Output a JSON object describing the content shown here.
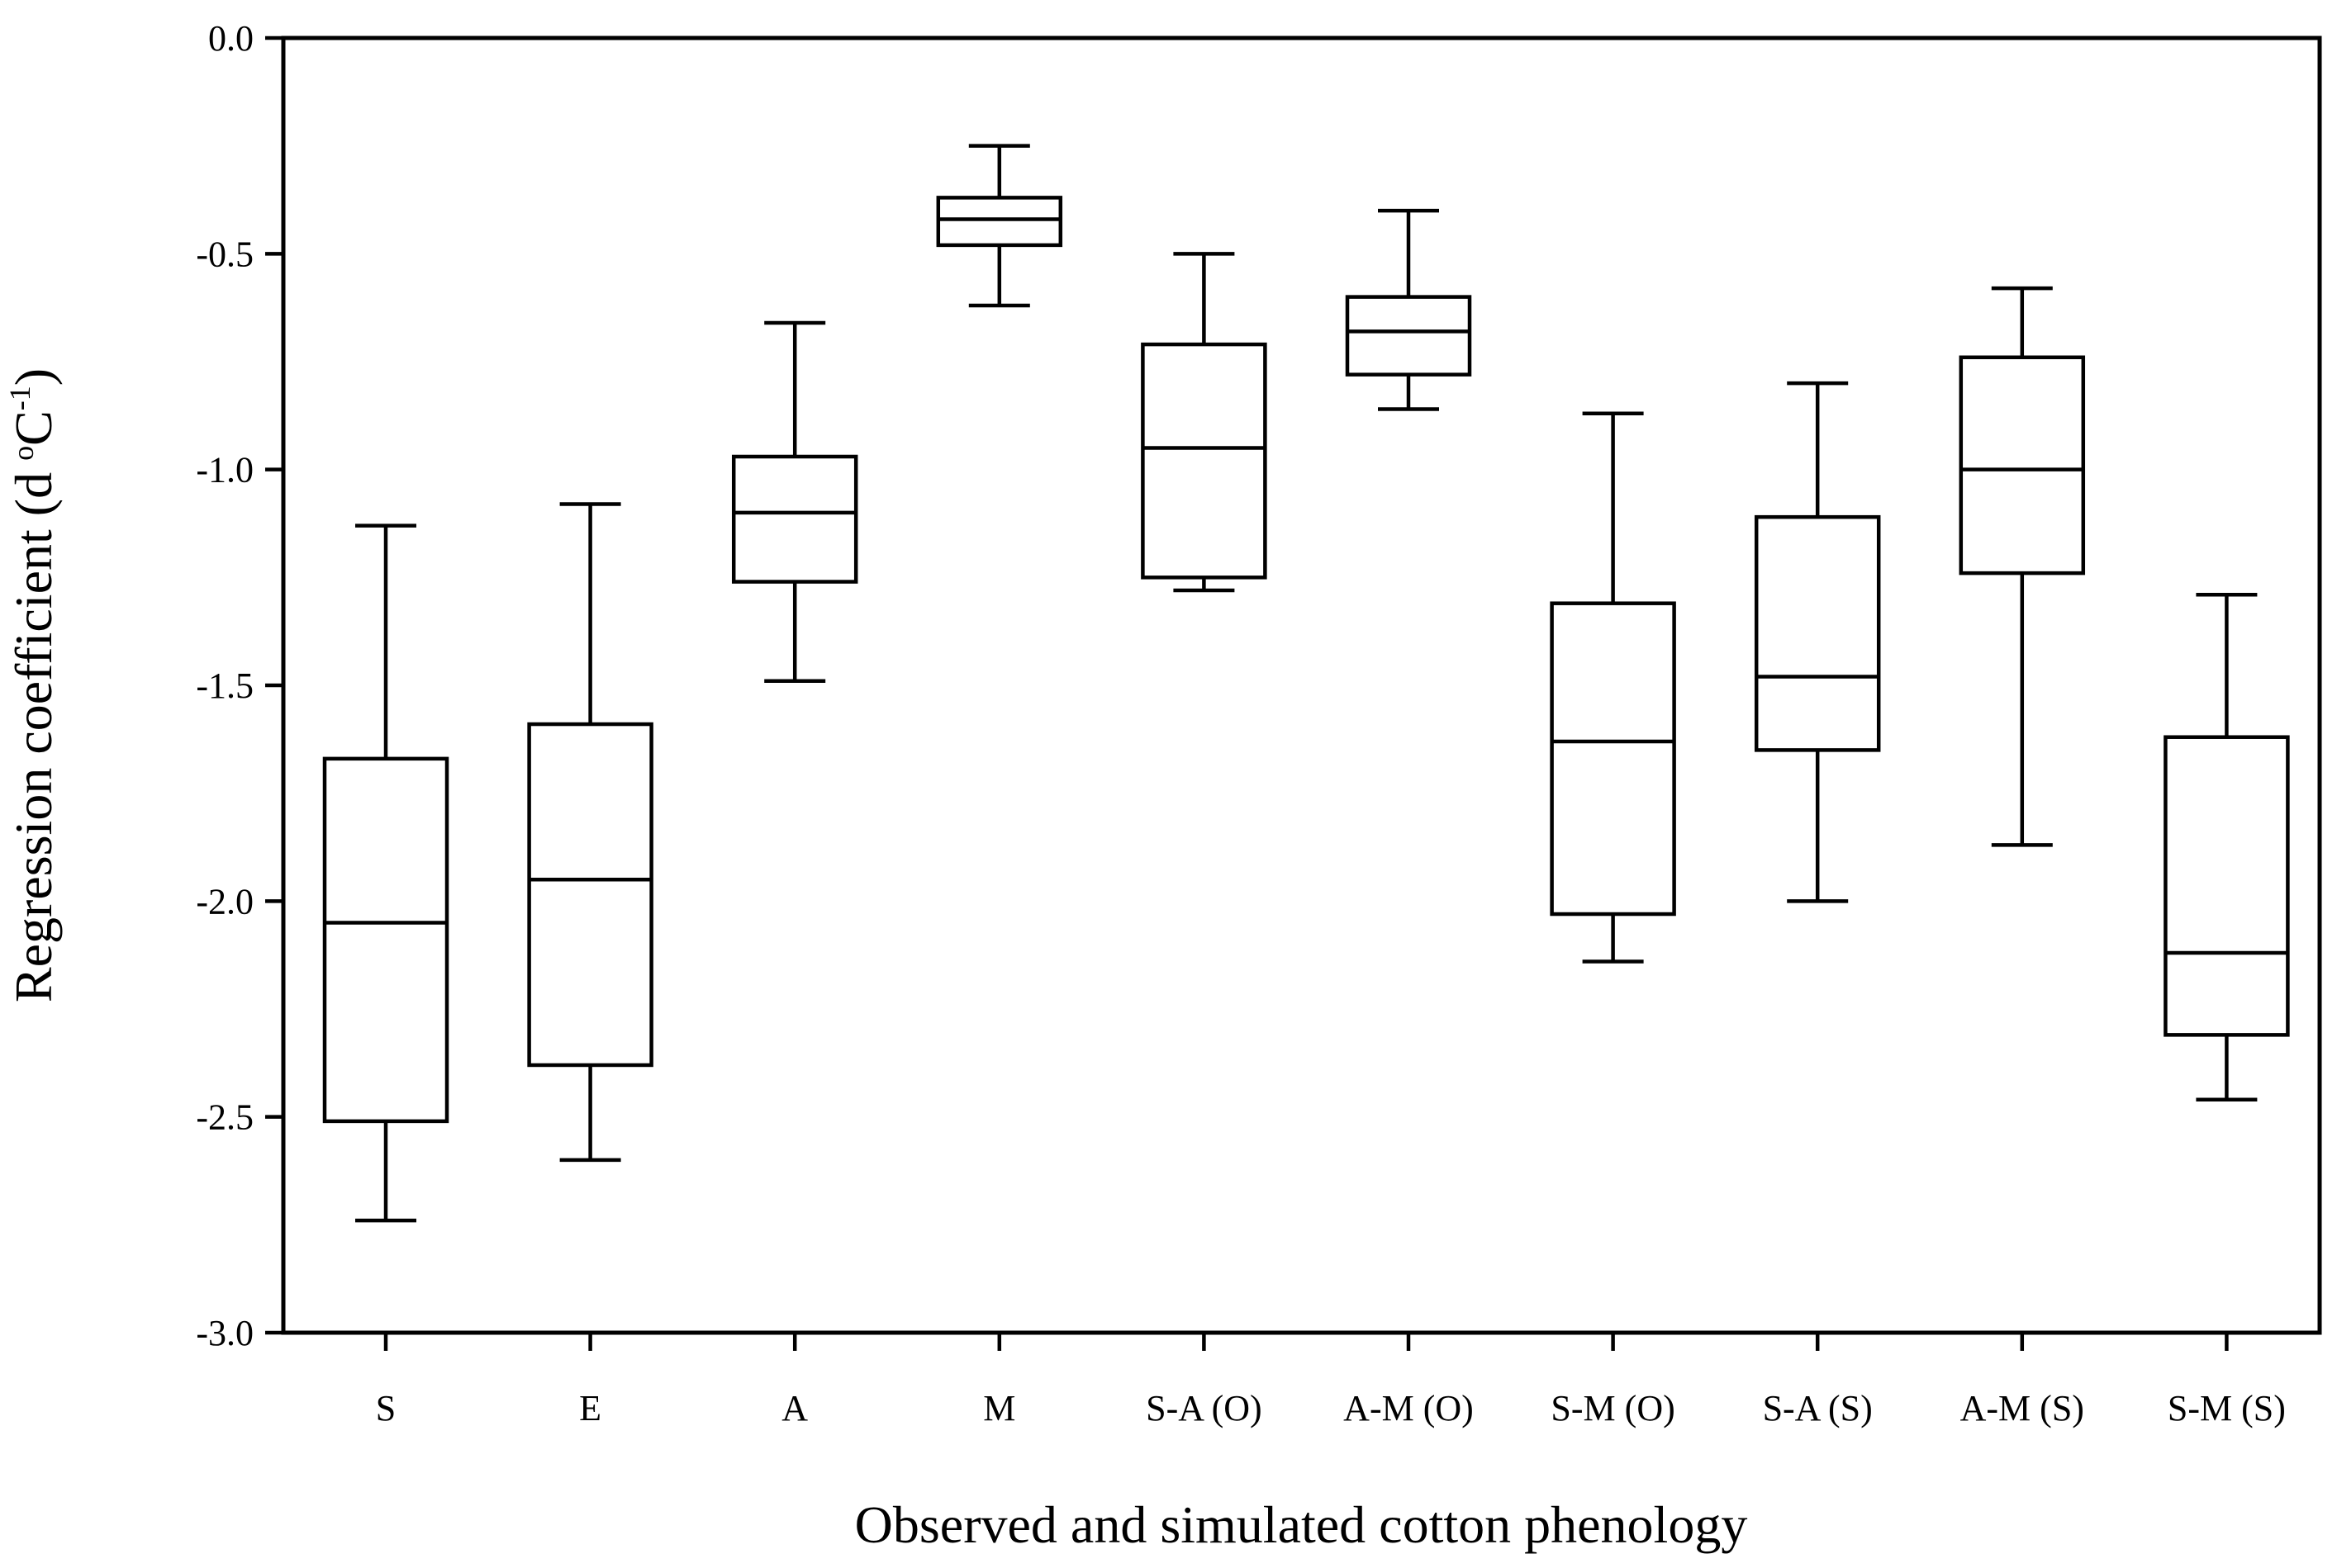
{
  "chart_data": {
    "type": "boxplot",
    "title": "",
    "xlabel": "Observed and simulated cotton phenology",
    "ylabel": {
      "prefix": "Regression coefficient (d",
      "unit": "C",
      "exponent": "-1",
      "suffix": ")",
      "degree": "o"
    },
    "ylim": [
      -3.0,
      0.0
    ],
    "yticks": [
      0.0,
      -0.5,
      -1.0,
      -1.5,
      -2.0,
      -2.5,
      -3.0
    ],
    "ytick_labels": [
      "0.0",
      "-0.5",
      "-1.0",
      "-1.5",
      "-2.0",
      "-2.5",
      "-3.0"
    ],
    "categories": [
      "S",
      "E",
      "A",
      "M",
      "S-A (O)",
      "A-M (O)",
      "S-M (O)",
      "S-A (S)",
      "A-M (S)",
      "S-M (S)"
    ],
    "boxes": [
      {
        "category": "S",
        "whisker_high": -1.13,
        "q3": -1.67,
        "median": -2.05,
        "q1": -2.51,
        "whisker_low": -2.74
      },
      {
        "category": "E",
        "whisker_high": -1.08,
        "q3": -1.59,
        "median": -1.95,
        "q1": -2.38,
        "whisker_low": -2.6
      },
      {
        "category": "A",
        "whisker_high": -0.66,
        "q3": -0.97,
        "median": -1.1,
        "q1": -1.26,
        "whisker_low": -1.49
      },
      {
        "category": "M",
        "whisker_high": -0.25,
        "q3": -0.37,
        "median": -0.42,
        "q1": -0.48,
        "whisker_low": -0.62
      },
      {
        "category": "S-A (O)",
        "whisker_high": -0.5,
        "q3": -0.71,
        "median": -0.95,
        "q1": -1.25,
        "whisker_low": -1.28
      },
      {
        "category": "A-M (O)",
        "whisker_high": -0.4,
        "q3": -0.6,
        "median": -0.68,
        "q1": -0.78,
        "whisker_low": -0.86
      },
      {
        "category": "S-M (O)",
        "whisker_high": -0.87,
        "q3": -1.31,
        "median": -1.63,
        "q1": -2.03,
        "whisker_low": -2.14
      },
      {
        "category": "S-A (S)",
        "whisker_high": -0.8,
        "q3": -1.11,
        "median": -1.48,
        "q1": -1.65,
        "whisker_low": -2.0
      },
      {
        "category": "A-M (S)",
        "whisker_high": -0.58,
        "q3": -0.74,
        "median": -1.0,
        "q1": -1.24,
        "whisker_low": -1.87
      },
      {
        "category": "S-M (S)",
        "whisker_high": -1.29,
        "q3": -1.62,
        "median": -2.12,
        "q1": -2.31,
        "whisker_low": -2.46
      }
    ],
    "grid": false,
    "legend": "none"
  }
}
